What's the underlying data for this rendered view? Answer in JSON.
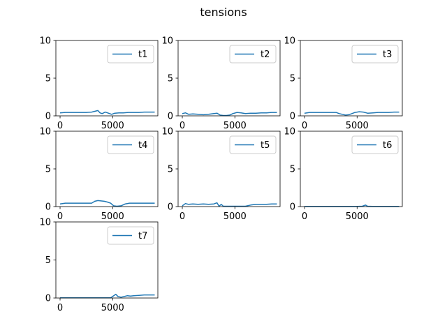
{
  "figure": {
    "title": "tensions",
    "line_color": "#1f77b4",
    "grid": false,
    "legend_position": "top-right"
  },
  "chart_data": [
    {
      "type": "line",
      "title": "",
      "xlabel": "",
      "ylabel": "",
      "xlim": [
        -400,
        9300
      ],
      "ylim": [
        0,
        10
      ],
      "xticks": [
        0,
        5000
      ],
      "yticks": [
        0,
        5,
        10
      ],
      "series": [
        {
          "name": "t1",
          "x": [
            0,
            500,
            1000,
            1500,
            2000,
            2500,
            3000,
            3300,
            3600,
            3800,
            4000,
            4300,
            4600,
            4900,
            5200,
            5600,
            6000,
            6500,
            7000,
            7500,
            8000,
            8500,
            9000
          ],
          "y": [
            0.4,
            0.45,
            0.45,
            0.45,
            0.45,
            0.45,
            0.5,
            0.6,
            0.7,
            0.4,
            0.3,
            0.5,
            0.35,
            0.2,
            0.35,
            0.4,
            0.4,
            0.45,
            0.45,
            0.45,
            0.5,
            0.5,
            0.5
          ]
        }
      ]
    },
    {
      "type": "line",
      "title": "",
      "xlabel": "",
      "ylabel": "",
      "xlim": [
        -400,
        9300
      ],
      "ylim": [
        0,
        10
      ],
      "xticks": [
        0,
        5000
      ],
      "yticks": [
        0,
        5,
        10
      ],
      "series": [
        {
          "name": "t2",
          "x": [
            0,
            300,
            600,
            1000,
            1500,
            2000,
            2500,
            3000,
            3300,
            3600,
            3900,
            4200,
            4500,
            4800,
            5200,
            5600,
            6000,
            6500,
            7000,
            7500,
            8000,
            8500,
            9000
          ],
          "y": [
            0.3,
            0.4,
            0.2,
            0.25,
            0.2,
            0.15,
            0.2,
            0.3,
            0.35,
            0.1,
            0.05,
            0.05,
            0.1,
            0.3,
            0.45,
            0.4,
            0.3,
            0.35,
            0.35,
            0.4,
            0.4,
            0.45,
            0.45
          ]
        }
      ]
    },
    {
      "type": "line",
      "title": "",
      "xlabel": "",
      "ylabel": "",
      "xlim": [
        -400,
        9300
      ],
      "ylim": [
        0,
        10
      ],
      "xticks": [
        0,
        5000
      ],
      "yticks": [
        0,
        5,
        10
      ],
      "series": [
        {
          "name": "t3",
          "x": [
            0,
            500,
            1000,
            1500,
            2000,
            2500,
            3000,
            3300,
            3600,
            3900,
            4200,
            4500,
            4800,
            5200,
            5600,
            6000,
            6500,
            7000,
            7500,
            8000,
            8500,
            9000
          ],
          "y": [
            0.35,
            0.45,
            0.45,
            0.45,
            0.45,
            0.45,
            0.45,
            0.3,
            0.2,
            0.1,
            0.15,
            0.3,
            0.45,
            0.55,
            0.5,
            0.35,
            0.4,
            0.45,
            0.45,
            0.45,
            0.5,
            0.5
          ]
        }
      ]
    },
    {
      "type": "line",
      "title": "",
      "xlabel": "",
      "ylabel": "",
      "xlim": [
        -400,
        9300
      ],
      "ylim": [
        0,
        10
      ],
      "xticks": [
        0,
        5000
      ],
      "yticks": [
        0,
        5,
        10
      ],
      "series": [
        {
          "name": "t4",
          "x": [
            0,
            500,
            1000,
            1500,
            2000,
            2500,
            3000,
            3300,
            3600,
            3900,
            4200,
            4500,
            4800,
            5100,
            5400,
            5800,
            6200,
            6600,
            7000,
            7500,
            8000,
            8500,
            9000
          ],
          "y": [
            0.35,
            0.45,
            0.45,
            0.45,
            0.45,
            0.45,
            0.45,
            0.7,
            0.8,
            0.75,
            0.7,
            0.6,
            0.45,
            0.1,
            0.05,
            0.1,
            0.35,
            0.45,
            0.45,
            0.45,
            0.45,
            0.45,
            0.45
          ]
        }
      ]
    },
    {
      "type": "line",
      "title": "",
      "xlabel": "",
      "ylabel": "",
      "xlim": [
        -400,
        9300
      ],
      "ylim": [
        0,
        10
      ],
      "xticks": [
        0,
        5000
      ],
      "yticks": [
        0,
        5,
        10
      ],
      "series": [
        {
          "name": "t5",
          "x": [
            0,
            300,
            600,
            1000,
            1500,
            2000,
            2500,
            3000,
            3300,
            3500,
            3700,
            3900,
            4200,
            4500,
            4800,
            5100,
            5500,
            6000,
            6500,
            7000,
            7500,
            8000,
            8500,
            9000
          ],
          "y": [
            0.1,
            0.4,
            0.3,
            0.35,
            0.3,
            0.35,
            0.3,
            0.35,
            0.5,
            0.05,
            0.3,
            0.05,
            0.05,
            0.05,
            0.05,
            0.05,
            0.05,
            0.05,
            0.2,
            0.3,
            0.3,
            0.3,
            0.35,
            0.35
          ]
        }
      ]
    },
    {
      "type": "line",
      "title": "",
      "xlabel": "",
      "ylabel": "",
      "xlim": [
        -400,
        9300
      ],
      "ylim": [
        0,
        10
      ],
      "xticks": [
        0,
        5000
      ],
      "yticks": [
        0,
        5,
        10
      ],
      "series": [
        {
          "name": "t6",
          "x": [
            0,
            1000,
            2000,
            3000,
            4000,
            5000,
            5500,
            5800,
            6000,
            6500,
            7000,
            8000,
            9000
          ],
          "y": [
            0.02,
            0.02,
            0.02,
            0.02,
            0.02,
            0.02,
            0.05,
            0.2,
            0.05,
            0.03,
            0.03,
            0.03,
            0.03
          ]
        }
      ]
    },
    {
      "type": "line",
      "title": "",
      "xlabel": "",
      "ylabel": "",
      "xlim": [
        -400,
        9300
      ],
      "ylim": [
        0,
        10
      ],
      "xticks": [
        0,
        5000
      ],
      "yticks": [
        0,
        5,
        10
      ],
      "series": [
        {
          "name": "t7",
          "x": [
            0,
            1000,
            2000,
            3000,
            4000,
            4800,
            5100,
            5300,
            5500,
            5800,
            6100,
            6400,
            6700,
            7000,
            7500,
            8000,
            8500,
            9000
          ],
          "y": [
            0.02,
            0.02,
            0.02,
            0.02,
            0.02,
            0.02,
            0.3,
            0.5,
            0.2,
            0.1,
            0.2,
            0.3,
            0.25,
            0.3,
            0.35,
            0.4,
            0.4,
            0.4
          ]
        }
      ]
    }
  ]
}
